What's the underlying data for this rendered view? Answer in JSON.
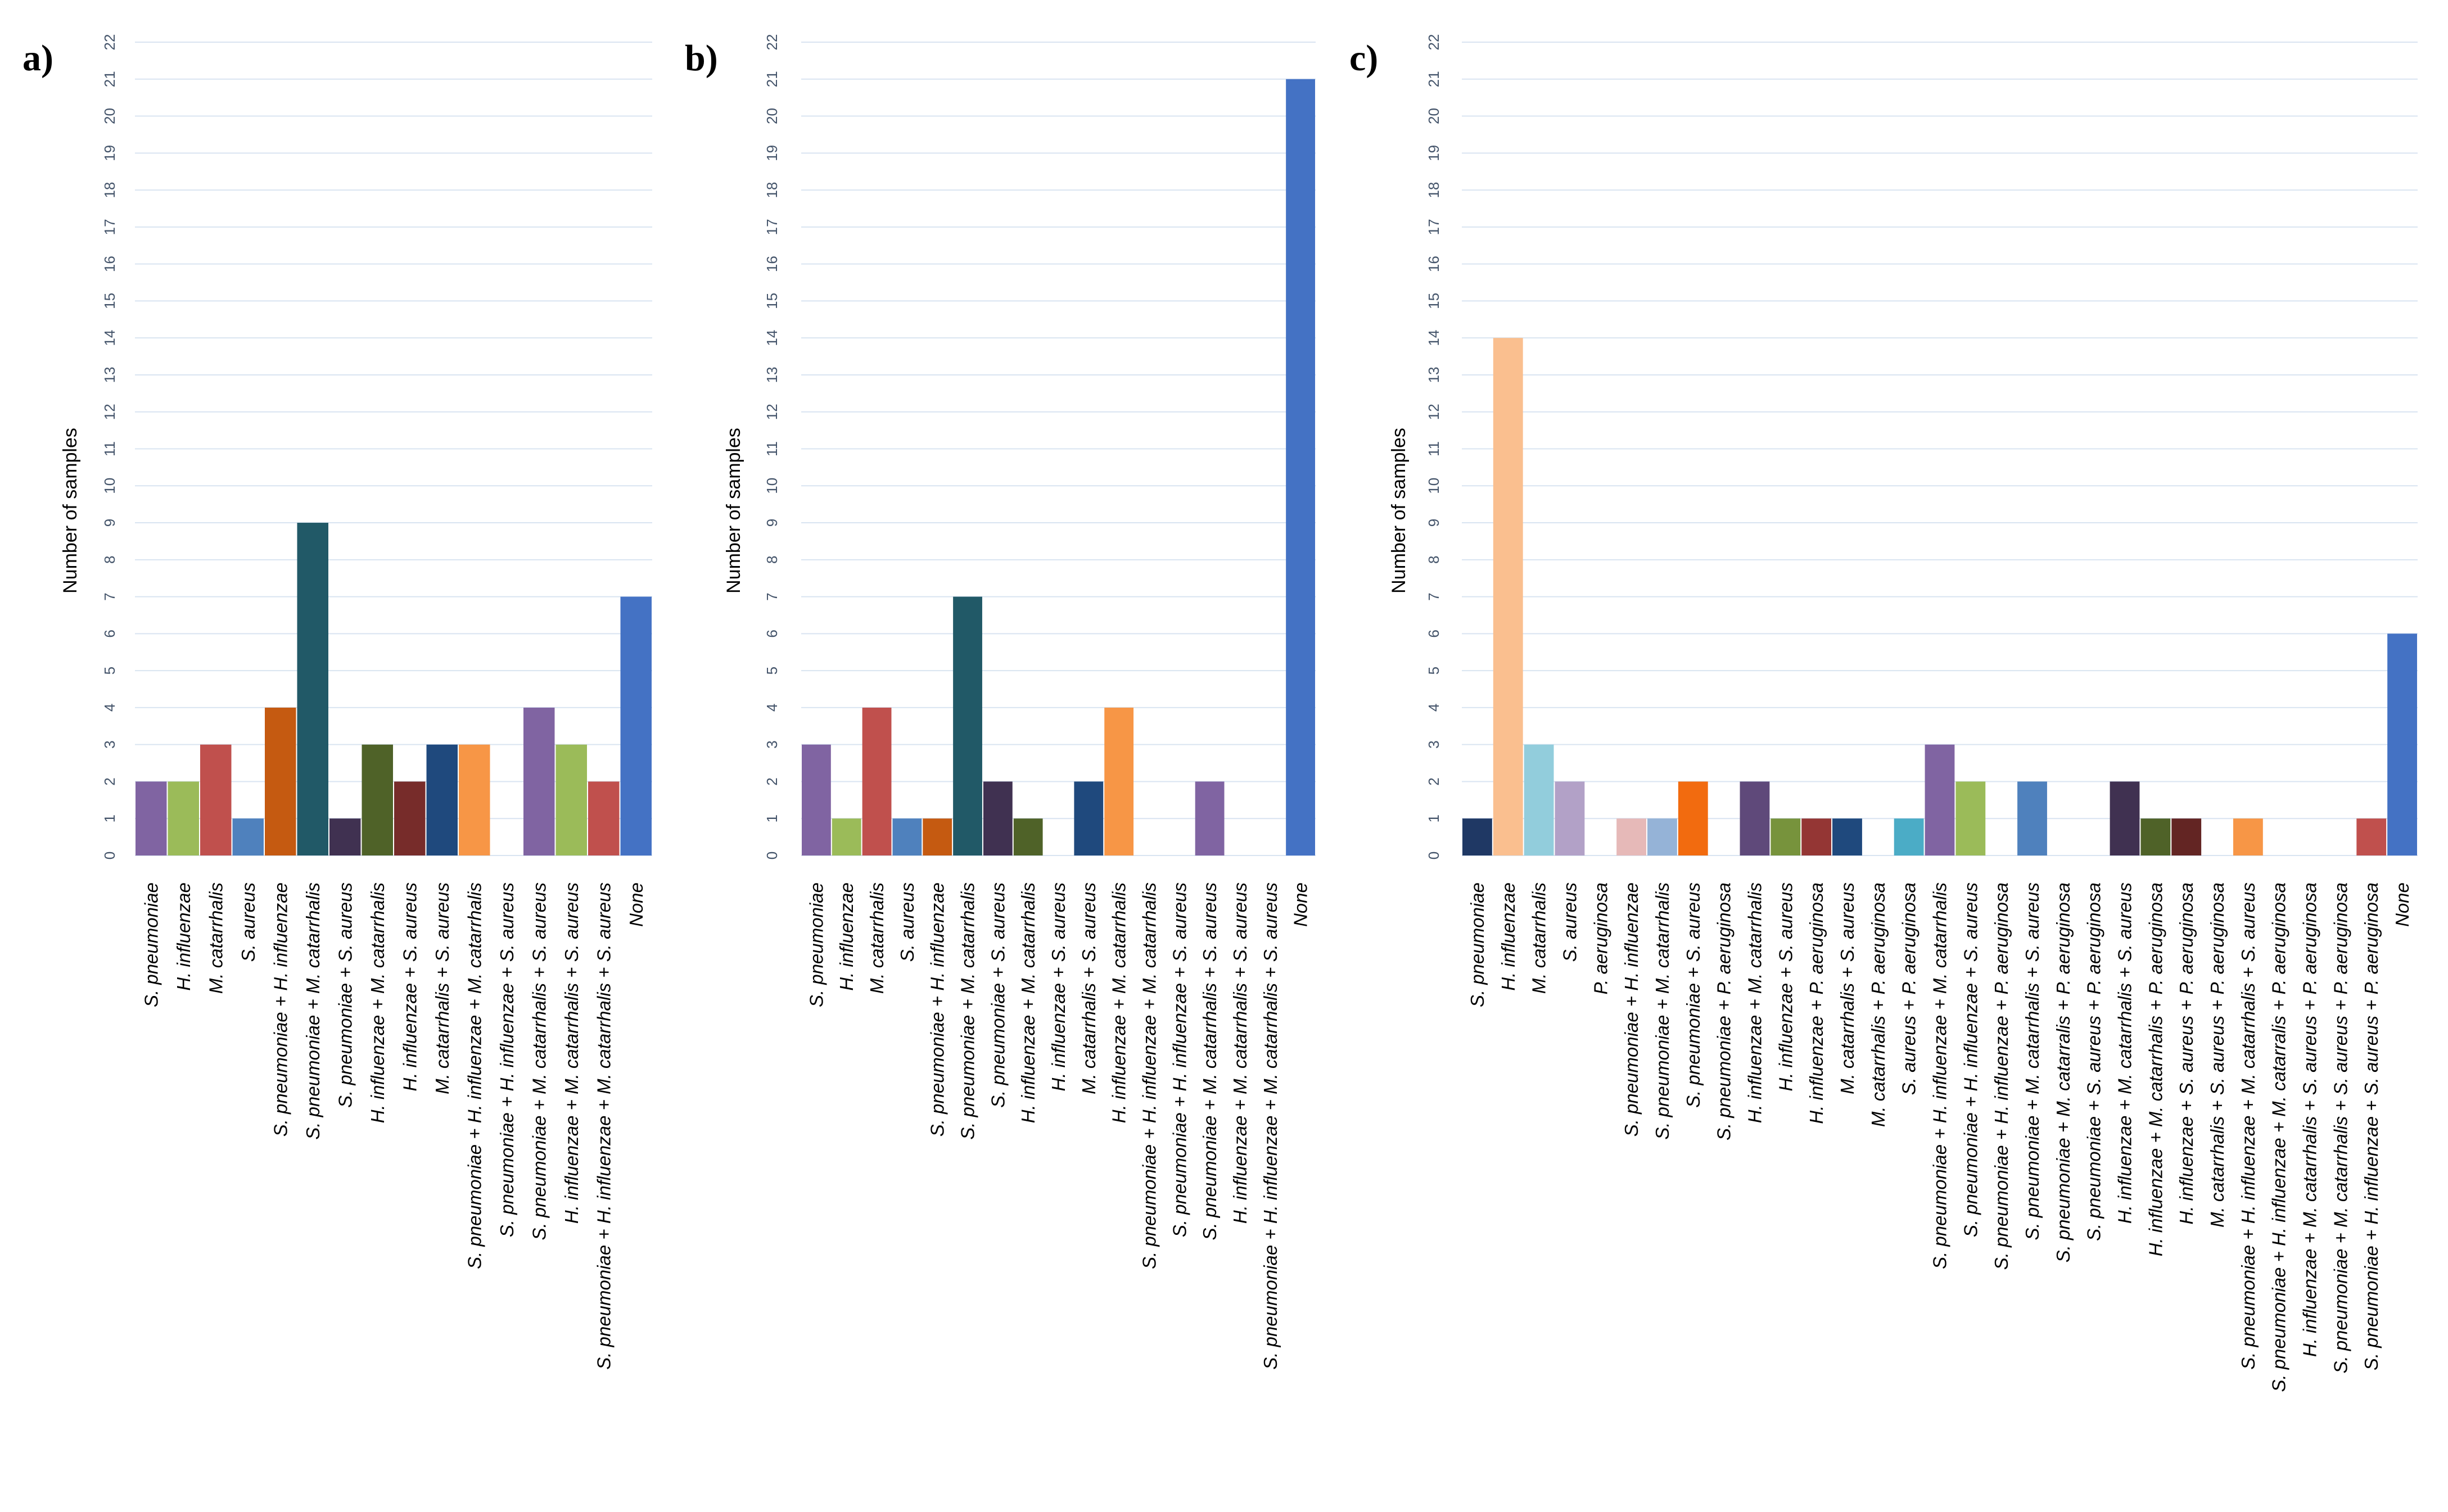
{
  "chart_data": [
    {
      "type": "bar",
      "panel_label": "a)",
      "ylabel": "Number of samples",
      "ylim": [
        0,
        22
      ],
      "yticks": [
        "0",
        "1",
        "2",
        "3",
        "4",
        "5",
        "6",
        "7",
        "8",
        "9",
        "10",
        "11",
        "12",
        "13",
        "14",
        "15",
        "16",
        "17",
        "18",
        "19",
        "20",
        "21",
        "22"
      ],
      "grid": true,
      "categories": [
        "S. pneumoniae",
        "H. influenzae",
        "M. catarrhalis",
        "S. aureus",
        "S. pneumoniae + H. influenzae",
        "S. pneumoniae + M. catarrhalis",
        "S. pneumoniae + S. aureus",
        "H. influenzae + M. catarrhalis",
        "H. influenzae + S. aureus",
        "M. catarrhalis + S. aureus",
        "S. pneumoniae + H. influenzae + M. catarrhalis",
        "S. pneumoniae + H. influenzae + S. aureus",
        "S. pneumoniae + M. catarrhalis + S. aureus",
        "H. influenzae + M. catarrhalis + S. aureus",
        "S. pneumoniae + H. influenzae + M. catarrhalis + S. aureus",
        "None"
      ],
      "values": [
        2,
        2,
        3,
        1,
        4,
        9,
        1,
        3,
        2,
        3,
        3,
        0,
        4,
        3,
        2,
        7
      ],
      "colors": [
        "#8064a2",
        "#9bbb59",
        "#c0504d",
        "#4f81bd",
        "#c55a11",
        "#215967",
        "#403151",
        "#4f6228",
        "#772c2a",
        "#1f497d",
        "#f79646",
        "#4bacc6",
        "#8064a2",
        "#9bbb59",
        "#c0504d",
        "#4472c4"
      ]
    },
    {
      "type": "bar",
      "panel_label": "b)",
      "ylabel": "Number of samples",
      "ylim": [
        0,
        22
      ],
      "yticks": [
        "0",
        "1",
        "2",
        "3",
        "4",
        "5",
        "6",
        "7",
        "8",
        "9",
        "10",
        "11",
        "12",
        "13",
        "14",
        "15",
        "16",
        "17",
        "18",
        "19",
        "20",
        "21",
        "22"
      ],
      "grid": true,
      "categories": [
        "S. pneumoniae",
        "H. influenzae",
        "M. catarrhalis",
        "S. aureus",
        "S. pneumoniae + H. influenzae",
        "S. pneumoniae + M. catarrhalis",
        "S. pneumoniae + S. aureus",
        "H. influenzae + M. catarrhalis",
        "H. influenzae + S. aureus",
        "M. catarrhalis + S. aureus",
        "H. influenzae + M. catarrhalis",
        "S. pneumoniae + H. influenzae + M. catarrhalis",
        "S. pneumoniae + H. influenzae + S. aureus",
        "S. pneumoniae + M. catarrhalis + S. aureus",
        "H. influenzae + M. catarrhalis + S. aureus",
        "S. pneumoniae + H. influenzae + M. catarrhalis + S. aureus",
        "None"
      ],
      "values": [
        3,
        1,
        4,
        1,
        1,
        7,
        2,
        1,
        0,
        2,
        4,
        0,
        0,
        2,
        0,
        0,
        21
      ],
      "colors": [
        "#8064a2",
        "#9bbb59",
        "#c0504d",
        "#4f81bd",
        "#c55a11",
        "#215967",
        "#403151",
        "#4f6228",
        "#772c2a",
        "#1f497d",
        "#f79646",
        "#4bacc6",
        "#8064a2",
        "#8064a2",
        "#9bbb59",
        "#c0504d",
        "#4472c4"
      ]
    },
    {
      "type": "bar",
      "panel_label": "c)",
      "ylabel": "Number of samples",
      "ylim": [
        0,
        22
      ],
      "yticks": [
        "0",
        "1",
        "2",
        "3",
        "4",
        "5",
        "6",
        "7",
        "8",
        "9",
        "10",
        "11",
        "12",
        "13",
        "14",
        "15",
        "16",
        "17",
        "18",
        "19",
        "20",
        "21",
        "22"
      ],
      "grid": true,
      "categories": [
        "S. pneumoniae",
        "H. influenzae",
        "M. catarrhalis",
        "S. aureus",
        "P. aeruginosa",
        "S. pneumoniae + H. influenzae",
        "S. pneumoniae + M. catarrhalis",
        "S. pneumoniae + S. aureus",
        "S. pneumoniae + P. aeruginosa",
        "H. influenzae + M. catarrhalis",
        "H. influenzae + S. aureus",
        "H. influenzae + P. aeruginosa",
        "M. catarrhalis + S. aureus",
        "M. catarrhalis + P. aeruginosa",
        "S. aureus + P. aeruginosa",
        "S. pneumoniae + H. influenzae + M. catarrhalis",
        "S. pneumoniae + H. influenzae + S. aureus",
        "S. pneumoniae + H. influenzae + P. aeruginosa",
        "S. pneumoniae + M. catarrhalis + S. aureus",
        "S. pneumoniae + M. catarralis + P. aeruginosa",
        "S. pneumoniae + S. aureus + P. aeruginosa",
        "H. influenzae + M. catarrhalis + S. aureus",
        "H. influenzae + M. catarrhalis + P. aeruginosa",
        "H. influenzae + S. aureus + P. aeruginosa",
        "M. catarrhalis + S. aureus + P. aeruginosa",
        "S. pneumoniae + H. influenzae + M. catarrhalis + S. aureus",
        "S. pneumoniae + H. influenzae + M. catarralis + P. aeruginosa",
        "H. influenzae + M. catarrhalis + S. aureus + P. aeruginosa",
        "S. pneumoniae + M. catarrhalis + S. aureus + P. aeruginosa",
        "S. pneumoniae + H. influenzae + S. aureus + P. aeruginosa",
        "None"
      ],
      "values": [
        1,
        14,
        3,
        2,
        0,
        1,
        1,
        2,
        0,
        2,
        1,
        1,
        1,
        0,
        1,
        3,
        2,
        0,
        2,
        0,
        0,
        2,
        1,
        1,
        0,
        1,
        0,
        0,
        0,
        1,
        6
      ],
      "colors": [
        "#1f3864",
        "#fabf8f",
        "#92cddc",
        "#b2a1c7",
        "#7f7f7f",
        "#e6b9b8",
        "#95b3d7",
        "#f26b0f",
        "#7f7f7f",
        "#5f497a",
        "#77933c",
        "#943634",
        "#1f497d",
        "#7f7f7f",
        "#4bacc6",
        "#8064a2",
        "#9bbb59",
        "#7f7f7f",
        "#4f81bd",
        "#7f7f7f",
        "#7f7f7f",
        "#403151",
        "#4f6228",
        "#632523",
        "#7f7f7f",
        "#f79646",
        "#7f7f7f",
        "#7f7f7f",
        "#7f7f7f",
        "#c0504d",
        "#4472c4"
      ]
    }
  ]
}
